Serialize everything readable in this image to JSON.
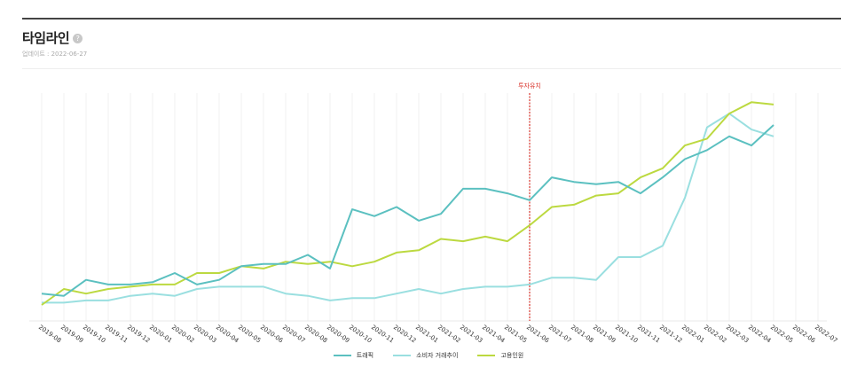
{
  "header": {
    "title": "타임라인",
    "help_icon": "question-circle-icon",
    "updated_label": "업데이트 : 2022-06-27"
  },
  "legend": [
    {
      "label": "트래픽",
      "color": "#5bc0c0"
    },
    {
      "label": "소비자 거래추이",
      "color": "#9adfe0"
    },
    {
      "label": "고용인원",
      "color": "#bcd940"
    }
  ],
  "marker": {
    "label": "투자유치",
    "at": "2021-06",
    "color": "#d9342b"
  },
  "chart_data": {
    "type": "line",
    "title": "타임라인",
    "xlabel": "",
    "ylabel": "",
    "grid": "vertical",
    "legend_position": "bottom",
    "categories": [
      "2019-08",
      "2019-09",
      "2019-10",
      "2019-11",
      "2019-12",
      "2020-01",
      "2020-02",
      "2020-03",
      "2020-04",
      "2020-05",
      "2020-06",
      "2020-07",
      "2020-08",
      "2020-09",
      "2020-10",
      "2020-11",
      "2020-12",
      "2021-01",
      "2021-02",
      "2021-03",
      "2021-04",
      "2021-05",
      "2021-06",
      "2021-07",
      "2021-08",
      "2021-09",
      "2021-10",
      "2021-11",
      "2021-12",
      "2022-01",
      "2022-02",
      "2022-03",
      "2022-04",
      "2022-05",
      "2022-06",
      "2022-07"
    ],
    "ylim": [
      0,
      100
    ],
    "annotations": [
      {
        "type": "vline",
        "x": "2021-06",
        "label": "투자유치"
      }
    ],
    "series": [
      {
        "name": "트래픽",
        "color": "#5bc0c0",
        "values": [
          12,
          11,
          18,
          16,
          16,
          17,
          21,
          16,
          18,
          24,
          25,
          25,
          29,
          23,
          49,
          46,
          50,
          44,
          47,
          58,
          58,
          56,
          53,
          63,
          61,
          60,
          61,
          56,
          63,
          71,
          75,
          81,
          77,
          86
        ]
      },
      {
        "name": "소비자 거래추이",
        "color": "#9adfe0",
        "values": [
          8,
          8,
          9,
          9,
          11,
          12,
          11,
          14,
          15,
          15,
          15,
          12,
          11,
          9,
          10,
          10,
          12,
          14,
          12,
          14,
          15,
          15,
          16,
          19,
          19,
          18,
          28,
          28,
          33,
          54,
          85,
          91,
          84,
          81
        ]
      },
      {
        "name": "고용인원",
        "color": "#bcd940",
        "values": [
          7,
          14,
          12,
          14,
          15,
          16,
          16,
          21,
          21,
          24,
          23,
          26,
          25,
          26,
          24,
          26,
          30,
          31,
          36,
          35,
          37,
          35,
          42,
          50,
          51,
          55,
          56,
          63,
          67,
          77,
          80,
          91,
          96,
          95
        ]
      }
    ]
  }
}
